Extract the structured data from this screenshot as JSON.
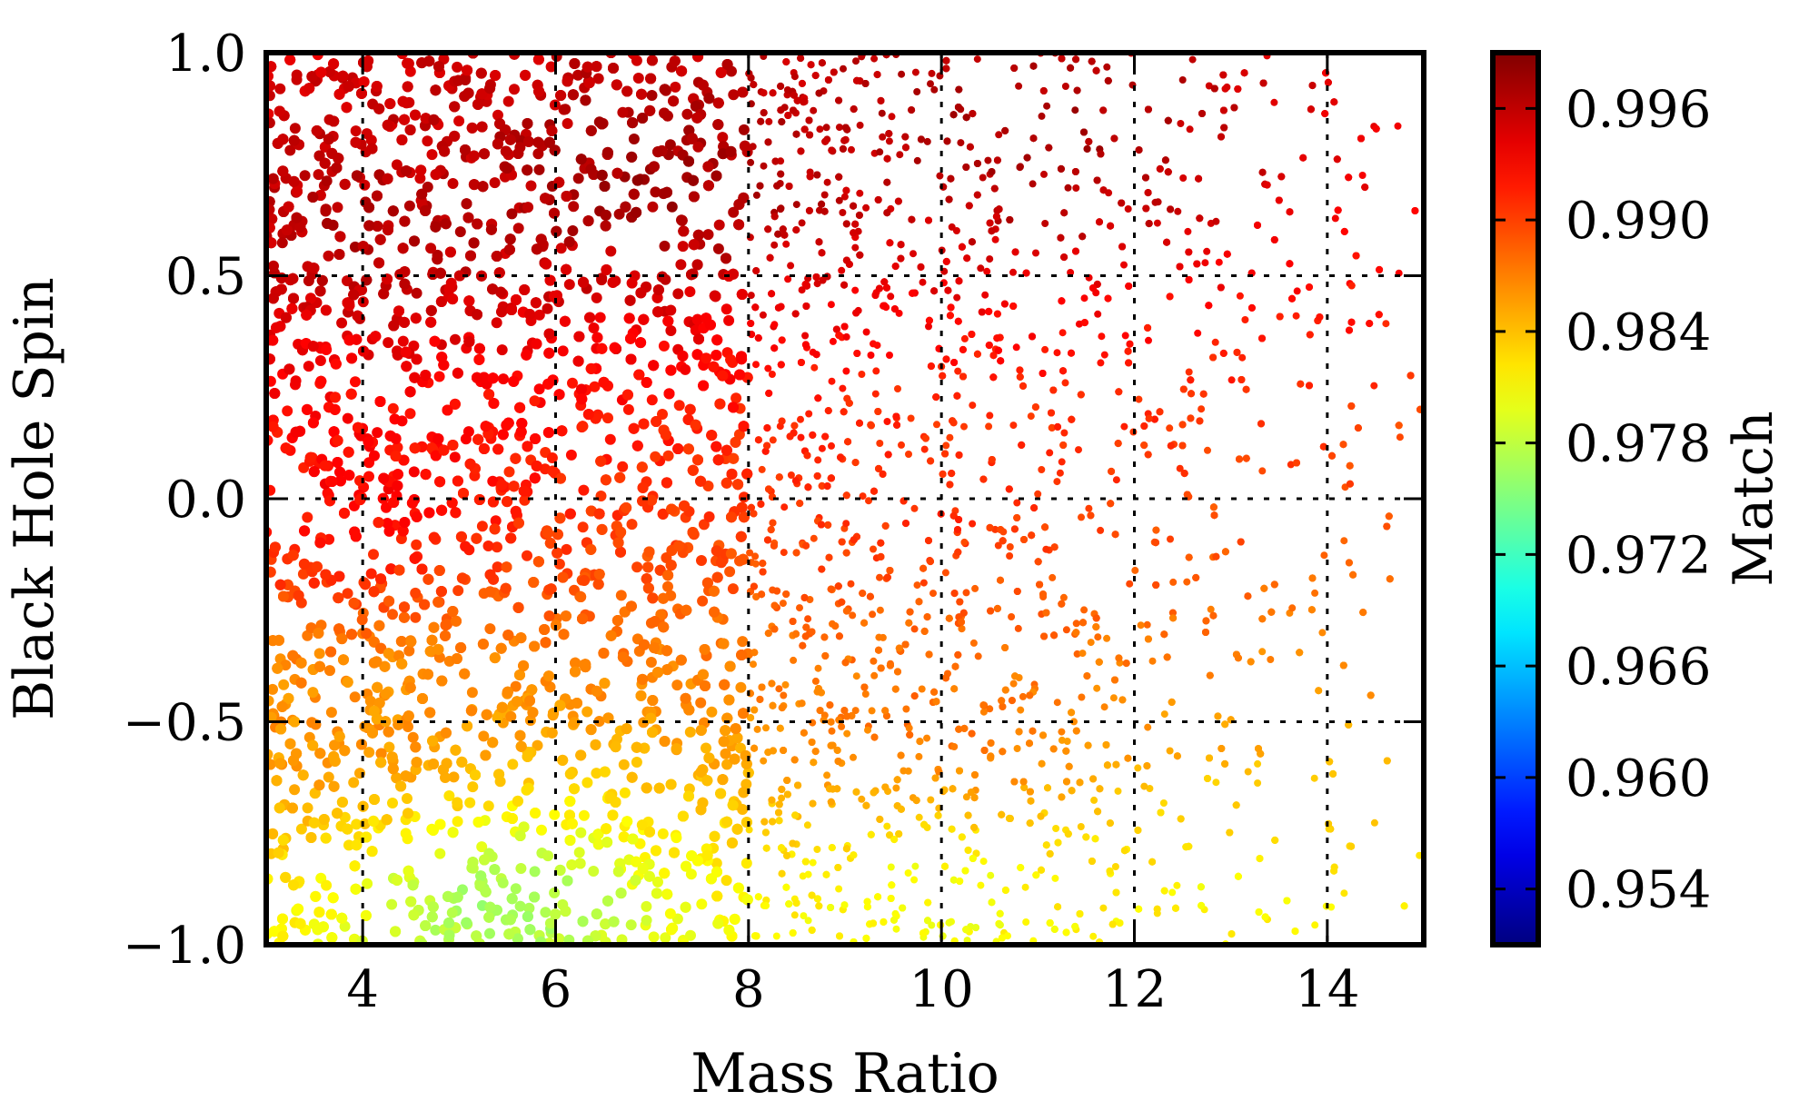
{
  "chart_data": {
    "type": "scatter",
    "title": "",
    "xlabel": "Mass Ratio",
    "ylabel": "Black Hole Spin",
    "xlim": [
      3,
      15
    ],
    "ylim": [
      -1.0,
      1.0
    ],
    "xticks": [
      4,
      6,
      8,
      10,
      12,
      14
    ],
    "yticks": [
      -1.0,
      -0.5,
      0.0,
      0.5,
      1.0
    ],
    "xtick_labels": [
      "4",
      "6",
      "8",
      "10",
      "12",
      "14"
    ],
    "ytick_labels": [
      "−1.0",
      "−0.5",
      "0.0",
      "0.5",
      "1.0"
    ],
    "grid": true,
    "grid_style": "dotted",
    "colorbar": {
      "label": "Match",
      "colormap": "jet",
      "range": [
        0.951,
        0.999
      ],
      "ticks": [
        0.954,
        0.96,
        0.966,
        0.972,
        0.978,
        0.984,
        0.99,
        0.996
      ],
      "tick_labels": [
        "0.954",
        "0.960",
        "0.966",
        "0.972",
        "0.978",
        "0.984",
        "0.990",
        "0.996"
      ]
    },
    "match_field_samples": [
      {
        "mass_ratio": 4,
        "spin": 0.6,
        "match": 0.9965
      },
      {
        "mass_ratio": 7,
        "spin": 0.7,
        "match": 0.9975
      },
      {
        "mass_ratio": 11,
        "spin": 0.8,
        "match": 0.9972
      },
      {
        "mass_ratio": 4,
        "spin": 0.0,
        "match": 0.993
      },
      {
        "mass_ratio": 10,
        "spin": 0.0,
        "match": 0.991
      },
      {
        "mass_ratio": 4,
        "spin": -0.5,
        "match": 0.986
      },
      {
        "mass_ratio": 10,
        "spin": -0.5,
        "match": 0.988
      },
      {
        "mass_ratio": 5.5,
        "spin": -0.9,
        "match": 0.976
      },
      {
        "mass_ratio": 10,
        "spin": -0.9,
        "match": 0.98
      },
      {
        "mass_ratio": 13,
        "spin": -0.9,
        "match": 0.981
      }
    ],
    "point_density": "dense at low mass ratio, sparse above mass ratio 8"
  }
}
